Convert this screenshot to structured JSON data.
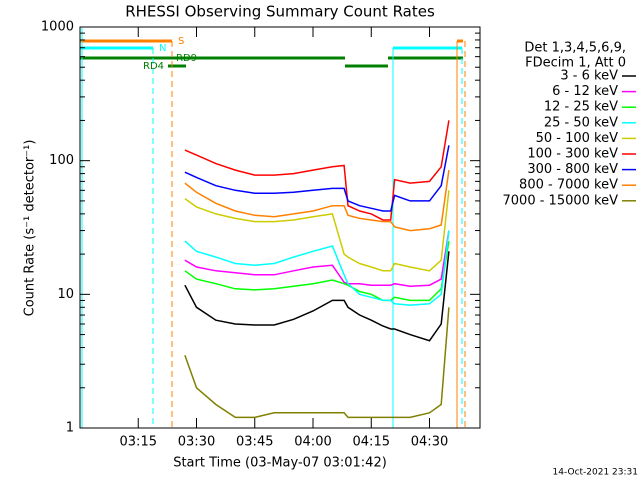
{
  "chart_data": {
    "type": "line",
    "title": "RHESSI Observing Summary Count Rates",
    "xlabel": "Start Time (03-May-07 03:01:42)",
    "ylabel": "Count Rate (s⁻¹ detector⁻¹)",
    "legend_header": [
      "Det 1,3,4,5,6,9,",
      "FDecim 1, Att 0"
    ],
    "legend": "right",
    "footer": "14-Oct-2021 23:31",
    "annotations": [
      "S",
      "N",
      "RD9",
      "RD4"
    ],
    "log_y": true,
    "ylim": [
      1,
      1000
    ],
    "yticks": [
      1,
      10,
      100,
      1000
    ],
    "xlim": [
      "03:00",
      "04:43"
    ],
    "xticks": [
      "03:15",
      "03:30",
      "03:45",
      "04:00",
      "04:15",
      "04:30"
    ],
    "x": [
      "03:27",
      "03:30",
      "03:35",
      "03:40",
      "03:45",
      "03:50",
      "03:55",
      "04:00",
      "04:05",
      "04:08",
      "04:09",
      "04:12",
      "04:15",
      "04:18",
      "04:20",
      "04:21",
      "04:25",
      "04:30",
      "04:33",
      "04:35"
    ],
    "series": [
      {
        "name": "3 - 6 keV",
        "color": "#000000",
        "values": [
          11.7,
          8,
          6.4,
          6,
          5.9,
          5.9,
          6.5,
          7.5,
          9,
          9,
          8,
          7,
          6.4,
          5.8,
          5.5,
          5.5,
          5,
          4.5,
          6,
          21
        ]
      },
      {
        "name": "6 - 12 keV",
        "color": "#ff00ff",
        "values": [
          18,
          16,
          15,
          14.5,
          14,
          14,
          15,
          16,
          16.5,
          12.3,
          12,
          12,
          11.7,
          11.7,
          11.7,
          12,
          11.5,
          11.7,
          13,
          30
        ]
      },
      {
        "name": "12 - 25 keV",
        "color": "#00ff00",
        "values": [
          15,
          13,
          12,
          11,
          10.8,
          11,
          11.5,
          12,
          12.8,
          12,
          11.7,
          10.5,
          10,
          9,
          9,
          9.5,
          9,
          9,
          11,
          25
        ]
      },
      {
        "name": "25 - 50 keV",
        "color": "#00ffff",
        "values": [
          25,
          21,
          19,
          17,
          16.5,
          17,
          19,
          21,
          23,
          14,
          12,
          10,
          9.5,
          9,
          9,
          8.5,
          8.3,
          8.5,
          10,
          30
        ]
      },
      {
        "name": "50 - 100 keV",
        "color": "#cccc00",
        "values": [
          52,
          45,
          40,
          37,
          35,
          35,
          36,
          38,
          40,
          20,
          19,
          17,
          16,
          15,
          15,
          17,
          16,
          15,
          18,
          60
        ]
      },
      {
        "name": "100 - 300 keV",
        "color": "#ff0000",
        "values": [
          120,
          110,
          95,
          85,
          78,
          78,
          80,
          85,
          90,
          92,
          46,
          42,
          40,
          36,
          36,
          72,
          68,
          70,
          90,
          200
        ]
      },
      {
        "name": "300 - 800 keV",
        "color": "#0000ff",
        "values": [
          82,
          75,
          65,
          60,
          57,
          57,
          58,
          60,
          62,
          62,
          50,
          46,
          44,
          42,
          42,
          55,
          50,
          50,
          65,
          130
        ]
      },
      {
        "name": "800 - 7000 keV",
        "color": "#ff8000",
        "values": [
          68,
          58,
          48,
          42,
          39,
          38,
          40,
          42,
          46,
          46,
          39,
          37,
          36,
          35,
          35,
          32,
          30,
          31,
          33,
          85
        ]
      },
      {
        "name": "7000 - 15000 keV",
        "color": "#808000",
        "values": [
          3.5,
          2,
          1.5,
          1.2,
          1.2,
          1.3,
          1.3,
          1.3,
          1.3,
          1.3,
          1.2,
          1.2,
          1.2,
          1.2,
          1.2,
          1.2,
          1.2,
          1.3,
          1.5,
          8
        ]
      }
    ]
  }
}
